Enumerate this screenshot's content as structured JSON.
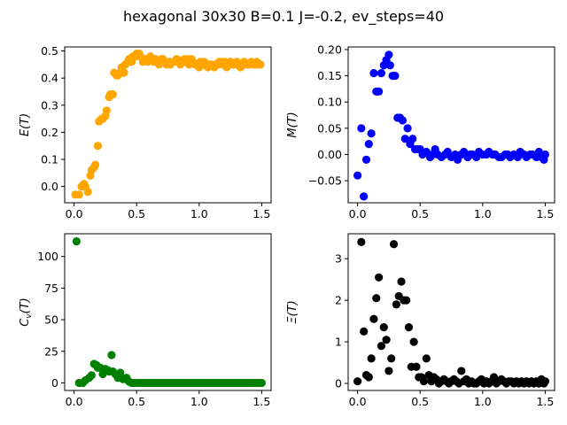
{
  "figure": {
    "suptitle": "hexagonal 30x30  B=0.1 J=-0.2, ev_steps=40"
  },
  "chart_data": [
    {
      "type": "scatter",
      "ylabel": "E(T)",
      "color": "#ffa500",
      "xlim": [
        -0.075,
        1.575
      ],
      "ylim": [
        -0.06,
        0.515
      ],
      "xticks": [
        0.0,
        0.5,
        1.0,
        1.5
      ],
      "xtick_labels": [
        "0.0",
        "0.5",
        "1.0",
        "1.5"
      ],
      "yticks": [
        0.0,
        0.1,
        0.2,
        0.3,
        0.4,
        0.5
      ],
      "ytick_labels": [
        "0.0",
        "0.1",
        "0.2",
        "0.3",
        "0.4",
        "0.5"
      ],
      "x": [
        0.01,
        0.04,
        0.06,
        0.08,
        0.09,
        0.11,
        0.13,
        0.14,
        0.16,
        0.17,
        0.19,
        0.2,
        0.22,
        0.23,
        0.25,
        0.26,
        0.28,
        0.29,
        0.31,
        0.32,
        0.34,
        0.35,
        0.37,
        0.38,
        0.4,
        0.41,
        0.43,
        0.44,
        0.46,
        0.47,
        0.49,
        0.5,
        0.52,
        0.53,
        0.55,
        0.56,
        0.58,
        0.59,
        0.61,
        0.62,
        0.64,
        0.65,
        0.67,
        0.68,
        0.7,
        0.71,
        0.73,
        0.74,
        0.76,
        0.77,
        0.79,
        0.8,
        0.82,
        0.83,
        0.85,
        0.86,
        0.88,
        0.89,
        0.91,
        0.92,
        0.94,
        0.95,
        0.97,
        0.98,
        1.0,
        1.01,
        1.03,
        1.04,
        1.06,
        1.07,
        1.09,
        1.1,
        1.12,
        1.13,
        1.15,
        1.16,
        1.18,
        1.19,
        1.21,
        1.22,
        1.24,
        1.25,
        1.27,
        1.28,
        1.3,
        1.31,
        1.33,
        1.34,
        1.36,
        1.37,
        1.39,
        1.4,
        1.42,
        1.43,
        1.45,
        1.46,
        1.48,
        1.49
      ],
      "y": [
        -0.03,
        -0.03,
        0.0,
        0.01,
        0.0,
        -0.02,
        0.04,
        0.06,
        0.07,
        0.08,
        0.15,
        0.24,
        0.25,
        0.25,
        0.26,
        0.28,
        0.33,
        0.34,
        0.34,
        0.42,
        0.41,
        0.41,
        0.42,
        0.44,
        0.42,
        0.45,
        0.46,
        0.47,
        0.46,
        0.48,
        0.48,
        0.49,
        0.49,
        0.48,
        0.46,
        0.47,
        0.47,
        0.46,
        0.48,
        0.47,
        0.46,
        0.47,
        0.46,
        0.45,
        0.47,
        0.47,
        0.46,
        0.45,
        0.46,
        0.45,
        0.46,
        0.46,
        0.47,
        0.46,
        0.45,
        0.46,
        0.47,
        0.46,
        0.47,
        0.45,
        0.47,
        0.46,
        0.45,
        0.45,
        0.44,
        0.46,
        0.45,
        0.46,
        0.45,
        0.44,
        0.45,
        0.45,
        0.44,
        0.45,
        0.45,
        0.46,
        0.46,
        0.45,
        0.46,
        0.44,
        0.45,
        0.46,
        0.45,
        0.45,
        0.46,
        0.45,
        0.44,
        0.45,
        0.46,
        0.45,
        0.45,
        0.45,
        0.46,
        0.45,
        0.45,
        0.46,
        0.45,
        0.45
      ]
    },
    {
      "type": "scatter",
      "ylabel": "M(T)",
      "color": "#0000ff",
      "xlim": [
        -0.075,
        1.575
      ],
      "ylim": [
        -0.092,
        0.205
      ],
      "xticks": [
        0.0,
        0.5,
        1.0,
        1.5
      ],
      "xtick_labels": [
        "0.0",
        "0.5",
        "1.0",
        "1.5"
      ],
      "yticks": [
        -0.05,
        0.0,
        0.05,
        0.1,
        0.15,
        0.2
      ],
      "ytick_labels": [
        "−0.05",
        "0.00",
        "0.05",
        "0.10",
        "0.15",
        "0.20"
      ],
      "x": [
        0.0,
        0.03,
        0.05,
        0.07,
        0.09,
        0.11,
        0.13,
        0.15,
        0.17,
        0.19,
        0.21,
        0.23,
        0.25,
        0.26,
        0.28,
        0.3,
        0.32,
        0.34,
        0.36,
        0.38,
        0.4,
        0.42,
        0.44,
        0.46,
        0.48,
        0.5,
        0.52,
        0.55,
        0.58,
        0.6,
        0.62,
        0.64,
        0.67,
        0.7,
        0.72,
        0.75,
        0.78,
        0.8,
        0.83,
        0.85,
        0.88,
        0.9,
        0.92,
        0.95,
        0.97,
        1.0,
        1.03,
        1.05,
        1.08,
        1.1,
        1.13,
        1.15,
        1.18,
        1.2,
        1.22,
        1.25,
        1.28,
        1.3,
        1.33,
        1.35,
        1.38,
        1.4,
        1.43,
        1.45,
        1.47,
        1.49,
        1.5
      ],
      "y": [
        -0.04,
        0.05,
        -0.08,
        -0.01,
        0.02,
        0.04,
        0.155,
        0.12,
        0.12,
        0.155,
        0.17,
        0.18,
        0.19,
        0.17,
        0.15,
        0.15,
        0.07,
        0.07,
        0.065,
        0.03,
        0.05,
        0.02,
        0.03,
        0.01,
        0.01,
        0.01,
        0.0,
        0.005,
        -0.005,
        0.0,
        0.01,
        0.0,
        -0.005,
        0.0,
        0.005,
        -0.005,
        0.0,
        -0.01,
        0.0,
        0.005,
        -0.005,
        0.0,
        0.0,
        -0.005,
        0.005,
        0.0,
        0.0,
        0.005,
        0.0,
        0.0,
        -0.005,
        -0.005,
        0.0,
        0.0,
        -0.005,
        0.0,
        -0.005,
        0.005,
        0.0,
        -0.005,
        0.0,
        0.0,
        -0.005,
        0.005,
        -0.005,
        -0.01,
        0.0
      ]
    },
    {
      "type": "scatter",
      "ylabel": "C_v(T)",
      "color": "#008000",
      "xlim": [
        -0.075,
        1.575
      ],
      "ylim": [
        -6,
        118
      ],
      "xticks": [
        0.0,
        0.5,
        1.0,
        1.5
      ],
      "xtick_labels": [
        "0.0",
        "0.5",
        "1.0",
        "1.5"
      ],
      "yticks": [
        0,
        25,
        50,
        75,
        100
      ],
      "ytick_labels": [
        "0",
        "25",
        "50",
        "75",
        "100"
      ],
      "x": [
        0.02,
        0.04,
        0.07,
        0.09,
        0.12,
        0.14,
        0.16,
        0.18,
        0.19,
        0.21,
        0.23,
        0.25,
        0.27,
        0.28,
        0.3,
        0.31,
        0.33,
        0.35,
        0.37,
        0.39,
        0.41,
        0.42,
        0.44,
        0.46,
        0.48,
        0.5,
        0.52,
        0.54,
        0.56,
        0.58,
        0.6,
        0.62,
        0.64,
        0.66,
        0.68,
        0.7,
        0.72,
        0.74,
        0.76,
        0.78,
        0.8,
        0.82,
        0.84,
        0.86,
        0.88,
        0.9,
        0.92,
        0.94,
        0.96,
        0.98,
        1.0,
        1.02,
        1.04,
        1.06,
        1.08,
        1.1,
        1.12,
        1.14,
        1.16,
        1.18,
        1.2,
        1.22,
        1.24,
        1.26,
        1.28,
        1.3,
        1.32,
        1.34,
        1.36,
        1.38,
        1.4,
        1.42,
        1.44,
        1.46,
        1.48,
        1.5
      ],
      "y": [
        112,
        0,
        0,
        2,
        4,
        6,
        15,
        14,
        12,
        12,
        7,
        11,
        10,
        9,
        22,
        9,
        7,
        4,
        8,
        3,
        3,
        4,
        1,
        0,
        0,
        0,
        0,
        0,
        0,
        0,
        0,
        0,
        0,
        0,
        0,
        0,
        0,
        0,
        0,
        0,
        0,
        0,
        0,
        0,
        0,
        0,
        0,
        0,
        0,
        0,
        0,
        0,
        0,
        0,
        0,
        0,
        0,
        0,
        0,
        0,
        0,
        0,
        0,
        0,
        0,
        0,
        0,
        0,
        0,
        0,
        0,
        0,
        0,
        0,
        0,
        0
      ]
    },
    {
      "type": "scatter",
      "ylabel": "Ξ(T)",
      "color": "#000000",
      "xlim": [
        -0.075,
        1.575
      ],
      "ylim": [
        -0.17,
        3.6
      ],
      "xticks": [
        0.0,
        0.5,
        1.0,
        1.5
      ],
      "xtick_labels": [
        "0.0",
        "0.5",
        "1.0",
        "1.5"
      ],
      "yticks": [
        0,
        1,
        2,
        3
      ],
      "ytick_labels": [
        "0",
        "1",
        "2",
        "3"
      ],
      "x": [
        0.0,
        0.03,
        0.05,
        0.07,
        0.09,
        0.11,
        0.13,
        0.15,
        0.17,
        0.19,
        0.21,
        0.23,
        0.25,
        0.27,
        0.29,
        0.31,
        0.33,
        0.35,
        0.37,
        0.39,
        0.41,
        0.43,
        0.45,
        0.47,
        0.49,
        0.51,
        0.53,
        0.55,
        0.57,
        0.59,
        0.61,
        0.63,
        0.65,
        0.67,
        0.69,
        0.71,
        0.73,
        0.75,
        0.77,
        0.79,
        0.81,
        0.83,
        0.85,
        0.87,
        0.89,
        0.91,
        0.93,
        0.95,
        0.97,
        0.99,
        1.01,
        1.03,
        1.05,
        1.07,
        1.09,
        1.11,
        1.13,
        1.15,
        1.17,
        1.19,
        1.21,
        1.23,
        1.25,
        1.27,
        1.29,
        1.31,
        1.33,
        1.35,
        1.37,
        1.39,
        1.41,
        1.43,
        1.45,
        1.47,
        1.49,
        1.5
      ],
      "y": [
        0.05,
        3.4,
        1.25,
        0.2,
        0.15,
        0.6,
        1.55,
        2.05,
        2.55,
        0.9,
        1.35,
        1.05,
        0.3,
        0.6,
        3.35,
        1.9,
        2.1,
        2.45,
        2.0,
        2.0,
        1.35,
        0.4,
        1.0,
        0.4,
        0.15,
        0.15,
        0.05,
        0.6,
        0.2,
        0.05,
        0.15,
        0.1,
        0.0,
        0.05,
        0.1,
        0.05,
        0.0,
        0.05,
        0.1,
        0.05,
        0.0,
        0.3,
        0.05,
        0.1,
        0.0,
        0.05,
        0.0,
        0.0,
        0.05,
        0.1,
        0.0,
        0.05,
        0.0,
        0.05,
        0.15,
        0.0,
        0.05,
        0.1,
        0.05,
        0.0,
        0.05,
        0.05,
        0.0,
        0.05,
        0.0,
        0.05,
        0.0,
        0.05,
        0.0,
        0.05,
        0.0,
        0.05,
        0.0,
        0.1,
        0.0,
        0.05
      ]
    }
  ]
}
